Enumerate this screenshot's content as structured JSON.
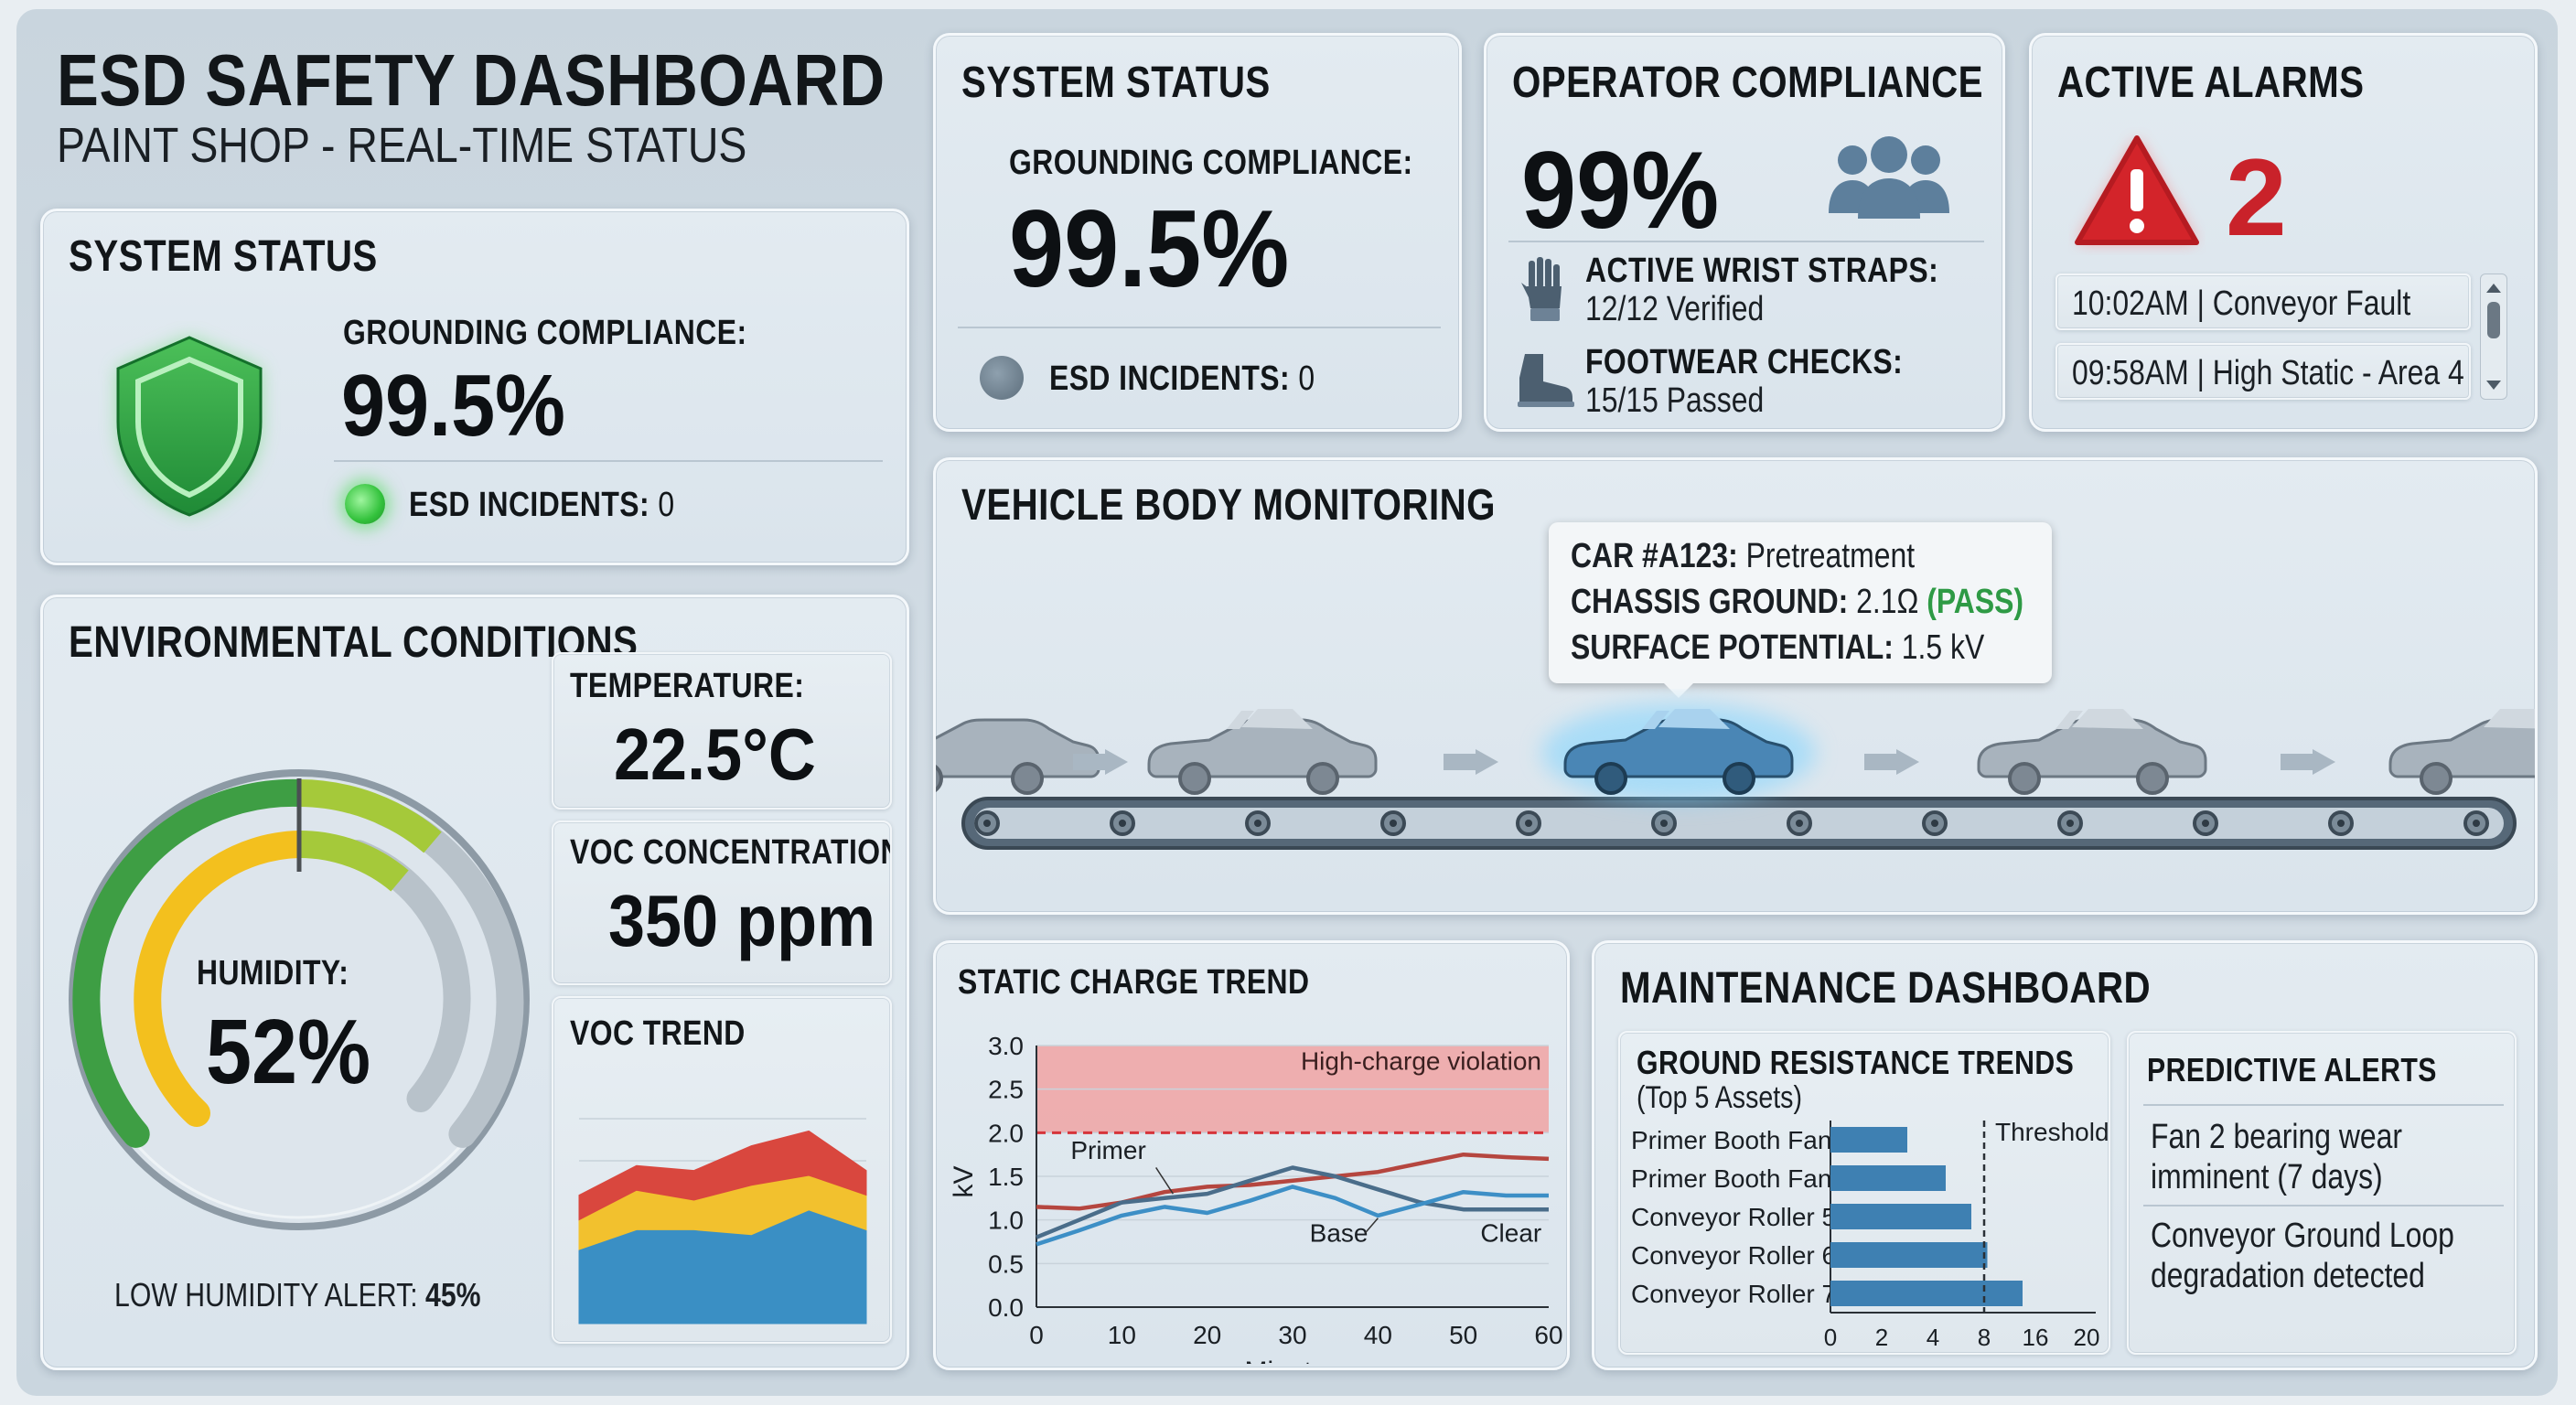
{
  "header": {
    "title": "ESD SAFETY DASHBOARD",
    "subtitle": "PAINT SHOP - REAL-TIME STATUS"
  },
  "system_status_main": {
    "title": "SYSTEM STATUS",
    "grounding_label": "GROUNDING COMPLIANCE:",
    "grounding_value": "99.5%",
    "incidents_label": "ESD INCIDENTS:",
    "incidents_value": "0",
    "icon": "shield-icon",
    "status_color": "#3fc24a"
  },
  "system_status_top": {
    "title": "SYSTEM STATUS",
    "grounding_label": "GROUNDING COMPLIANCE:",
    "grounding_value": "99.5%",
    "incidents_label": "ESD INCIDENTS:",
    "incidents_value": "0"
  },
  "operator": {
    "title": "OPERATOR COMPLIANCE",
    "value": "99%",
    "wrist_label": "ACTIVE WRIST STRAPS:",
    "wrist_value": "12/12 Verified",
    "footwear_label": "FOOTWEAR CHECKS:",
    "footwear_value": "15/15 Passed",
    "icons": [
      "group-icon",
      "glove-icon",
      "boot-icon"
    ]
  },
  "alarms": {
    "title": "ACTIVE ALARMS",
    "count": "2",
    "accent": "#d3242a",
    "items": [
      {
        "text": "10:02AM | Conveyor Fault"
      },
      {
        "text": "09:58AM | High Static - Area 4"
      }
    ]
  },
  "environment": {
    "title": "ENVIRONMENTAL CONDITIONS",
    "humidity_label": "HUMIDITY:",
    "humidity_value": "52%",
    "humidity_level": 52,
    "low_alert_label": "LOW HUMIDITY ALERT:",
    "low_alert_value": "45%",
    "temperature_label": "TEMPERATURE:",
    "temperature_value": "22.5°C",
    "voc_label": "VOC CONCENTRATION:",
    "voc_value": "350 ppm",
    "voc_trend_title": "VOC TREND"
  },
  "vehicle": {
    "title": "VEHICLE BODY MONITORING",
    "tooltip": {
      "car_label": "CAR #A123:",
      "car_value": "Pretreatment",
      "chassis_label": "CHASSIS GROUND:",
      "chassis_value": "2.1Ω",
      "chassis_status": "(PASS)",
      "surface_label": "SURFACE POTENTIAL:",
      "surface_value": "1.5 kV"
    },
    "highlight_color": "#4a86b5",
    "pass_color": "#2e9a45"
  },
  "static_trend": {
    "title": "STATIC CHARGE TREND",
    "violation_label": "High-charge violation",
    "series_labels": {
      "primer": "Primer",
      "base": "Base",
      "clear": "Clear"
    }
  },
  "maintenance": {
    "title": "MAINTENANCE DASHBOARD",
    "ground_title": "GROUND RESISTANCE TRENDS",
    "ground_subtitle": "(Top 5 Assets)",
    "threshold_label": "Threshold",
    "predictive_title": "PREDICTIVE ALERTS",
    "alerts": [
      {
        "line1": "Fan 2 bearing wear",
        "line2": "imminent (7 days)"
      },
      {
        "line1": "Conveyor Ground Loop",
        "line2": "degradation detected"
      }
    ]
  },
  "chart_data": [
    {
      "type": "line",
      "title": "STATIC CHARGE TREND",
      "xlabel": "Minutes",
      "ylabel": "kV",
      "xlim": [
        0,
        60
      ],
      "ylim": [
        0,
        3.0
      ],
      "xticks": [
        "0",
        "10",
        "20",
        "30",
        "40",
        "50",
        "60"
      ],
      "yticks": [
        "0.0",
        "0.5",
        "1.0",
        "1.5",
        "2.0",
        "2.5",
        "3.0"
      ],
      "threshold": 2.0,
      "violation_band": [
        2.0,
        3.0
      ],
      "x": [
        0,
        5,
        10,
        15,
        20,
        25,
        30,
        35,
        40,
        45,
        50,
        55,
        60
      ],
      "series": [
        {
          "name": "Primer",
          "color": "#b5463f",
          "values": [
            1.15,
            1.13,
            1.2,
            1.32,
            1.38,
            1.4,
            1.45,
            1.5,
            1.55,
            1.65,
            1.75,
            1.72,
            1.7
          ]
        },
        {
          "name": "Base",
          "color": "#4a6d8a",
          "values": [
            0.8,
            1.0,
            1.2,
            1.25,
            1.3,
            1.45,
            1.6,
            1.5,
            1.35,
            1.2,
            1.12,
            1.12,
            1.12
          ]
        },
        {
          "name": "Clear",
          "color": "#3d8fc6",
          "values": [
            0.72,
            0.88,
            1.05,
            1.15,
            1.08,
            1.22,
            1.38,
            1.25,
            1.05,
            1.18,
            1.32,
            1.28,
            1.28
          ]
        }
      ]
    },
    {
      "type": "area",
      "title": "VOC TREND",
      "x": [
        0,
        1,
        2,
        3,
        4,
        5
      ],
      "series": [
        {
          "name": "",
          "color": "#3a8fc4",
          "values": [
            30,
            38,
            38,
            36,
            46,
            38
          ]
        },
        {
          "name": "",
          "color": "#f2c12e",
          "values": [
            12,
            16,
            12,
            20,
            14,
            14
          ]
        },
        {
          "name": "",
          "color": "#d9473e",
          "values": [
            10,
            10,
            12,
            16,
            18,
            10
          ]
        }
      ],
      "ylim": [
        0,
        100
      ]
    },
    {
      "type": "bar",
      "title": "GROUND RESISTANCE TRENDS",
      "categories": [
        "Primer Booth Fan",
        "Primer Booth Fan",
        "Conveyor Roller 5",
        "Conveyor Roller 6",
        "Conveyor Roller 7"
      ],
      "values": [
        3,
        5,
        7,
        8.5,
        14
      ],
      "xticks": [
        "0",
        "2",
        "4",
        "8",
        "16",
        "20"
      ],
      "threshold": 8,
      "threshold_label": "Threshold",
      "color": "#3e80b2"
    }
  ]
}
